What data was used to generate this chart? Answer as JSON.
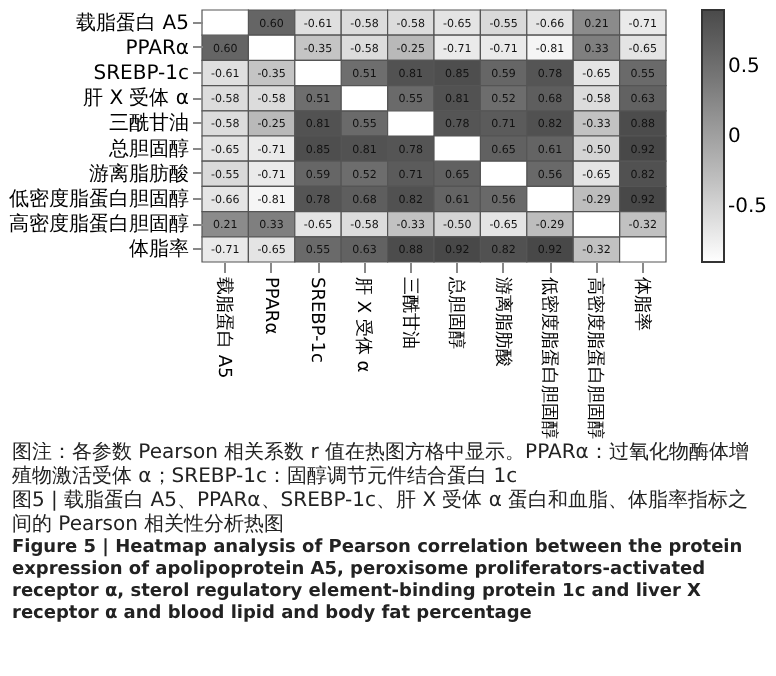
{
  "chart_data": {
    "type": "heatmap",
    "categories": [
      "载脂蛋白 A5",
      "PPARα",
      "SREBP-1c",
      "肝 X 受体 α",
      "三酰甘油",
      "总胆固醇",
      "游离脂肪酸",
      "低密度脂蛋白胆固醇",
      "高密度脂蛋白胆固醇",
      "体脂率"
    ],
    "y_categories": [
      "载脂蛋白 A5",
      "PPARα",
      "SREBP-1c",
      "肝 X 受体 α",
      "三酰甘油",
      "总胆固醇",
      "游离脂肪酸",
      "低密度脂蛋白胆固醇",
      "高密度脂蛋白胆固醇",
      "体脂率"
    ],
    "cells": [
      [
        null,
        0.6,
        -0.61,
        -0.58,
        -0.58,
        -0.65,
        -0.55,
        -0.66,
        0.21,
        -0.71
      ],
      [
        0.6,
        null,
        -0.35,
        -0.58,
        -0.25,
        -0.71,
        -0.71,
        -0.81,
        0.33,
        -0.65
      ],
      [
        -0.61,
        -0.35,
        null,
        0.51,
        0.81,
        0.85,
        0.59,
        0.78,
        -0.65,
        0.55
      ],
      [
        -0.58,
        -0.58,
        0.51,
        null,
        0.55,
        0.81,
        0.52,
        0.68,
        -0.58,
        0.63
      ],
      [
        -0.58,
        -0.25,
        0.81,
        0.55,
        null,
        0.78,
        0.71,
        0.82,
        -0.33,
        0.88
      ],
      [
        -0.65,
        -0.71,
        0.85,
        0.81,
        0.78,
        null,
        0.65,
        0.61,
        -0.5,
        0.92
      ],
      [
        -0.55,
        -0.71,
        0.59,
        0.52,
        0.71,
        0.65,
        null,
        0.56,
        -0.65,
        0.82
      ],
      [
        -0.66,
        -0.81,
        0.78,
        0.68,
        0.82,
        0.61,
        0.56,
        null,
        -0.29,
        0.92
      ],
      [
        0.21,
        0.33,
        -0.65,
        -0.58,
        -0.33,
        -0.5,
        -0.65,
        -0.29,
        null,
        -0.32
      ],
      [
        -0.71,
        -0.65,
        0.55,
        0.63,
        0.88,
        0.92,
        0.82,
        0.92,
        -0.32,
        null
      ]
    ],
    "cell_labels": [
      [
        null,
        "0.60",
        "-0.61",
        "-0.58",
        "-0.58",
        "-0.65",
        "-0.55",
        "-0.66",
        "0.21",
        "-0.71"
      ],
      [
        "0.60",
        null,
        "-0.35",
        "-0.58",
        "-0.25",
        "-0.71",
        "-0.71",
        "-0.81",
        "0.33",
        "-0.65"
      ],
      [
        "-0.61",
        "-0.35",
        null,
        "0.51",
        "0.81",
        "0.85",
        "0.59",
        "0.78",
        "-0.65",
        "0.55"
      ],
      [
        "-0.58",
        "-0.58",
        "0.51",
        null,
        "0.55",
        "0.81",
        "0.52",
        "0.68",
        "-0.58",
        "0.63"
      ],
      [
        "-0.58",
        "-0.25",
        "0.81",
        "0.55",
        null,
        "0.78",
        "0.71",
        "0.82",
        "-0.33",
        "0.88"
      ],
      [
        "-0.65",
        "-0.71",
        "0.85",
        "0.81",
        "0.78",
        null,
        "0.65",
        "0.61",
        "-0.50",
        "0.92"
      ],
      [
        "-0.55",
        "-0.71",
        "0.59",
        "0.52",
        "0.71",
        "0.65",
        null,
        "0.56",
        "-0.65",
        "0.82"
      ],
      [
        "-0.66",
        "-0.81",
        "0.78",
        "0.68",
        "0.82",
        "0.61",
        "0.56",
        null,
        "-0.29",
        "0.92"
      ],
      [
        "0.21",
        "0.33",
        "-0.65",
        "-0.58",
        "-0.33",
        "-0.50",
        "-0.65",
        "-0.29",
        null,
        "-0.32"
      ],
      [
        "-0.71",
        "-0.65",
        "0.55",
        "0.63",
        "0.88",
        "0.92",
        "0.82",
        "0.92",
        "-0.32",
        null
      ]
    ],
    "clim": [
      -0.9,
      0.9
    ],
    "cticks": [
      0.5,
      0,
      -0.5
    ],
    "annotations": [
      "图注：各参数 Pearson 相关系数 r 值在热图方格中显示。PPARα：过氧化物酶体增殖物激活受体 α；SREBP-1c：固醇调节元件结合蛋白 1c",
      "图5 | 载脂蛋白 A5、PPARα、SREBP-1c、肝 X 受体 α 蛋白和血脂、体脂率指标之间的 Pearson 相关性分析热图",
      "Figure 5 | Heatmap analysis of Pearson correlation between the protein expression of apolipoprotein A5, peroxisome proliferators-activated receptor α, sterol regulatory element-binding protein 1c and liver X receptor α and blood lipid and body fat percentage"
    ]
  }
}
